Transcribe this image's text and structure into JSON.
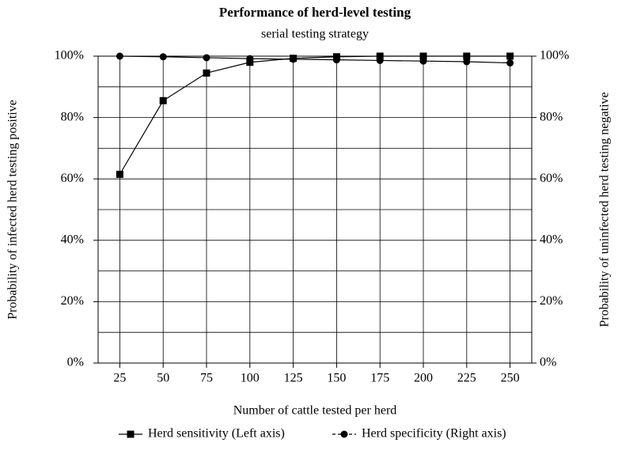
{
  "chart_data": {
    "type": "line",
    "title": "Performance of herd-level testing",
    "subtitle": "serial testing strategy",
    "xlabel": "Number of cattle tested per herd",
    "ylabel": "Probability of infected herd testing positive",
    "y2label": "Probability of uninfected herd testing negative",
    "categories": [
      "25",
      "50",
      "75",
      "100",
      "125",
      "150",
      "175",
      "200",
      "225",
      "250"
    ],
    "series": [
      {
        "name": "Herd sensitivity (Left axis)",
        "color": "#000000",
        "marker": "square",
        "values": [
          61.5,
          85.5,
          94.5,
          98,
          99.3,
          99.8,
          100,
          100,
          100,
          100
        ]
      },
      {
        "name": "Herd specificity (Right axis)",
        "color": "#000000",
        "marker": "circle",
        "axis": "y2",
        "values": [
          100,
          99.8,
          99.5,
          99.2,
          99,
          98.8,
          98.6,
          98.4,
          98.2,
          97.8
        ]
      }
    ],
    "ylim": [
      0,
      100
    ],
    "yticks": [
      {
        "value": 0,
        "label": "0%"
      },
      {
        "value": 20,
        "label": "20%"
      },
      {
        "value": 40,
        "label": "40%"
      },
      {
        "value": 60,
        "label": "60%"
      },
      {
        "value": 80,
        "label": "80%"
      },
      {
        "value": 100,
        "label": "100%"
      }
    ],
    "y2lim": [
      0,
      100
    ],
    "y2ticks": [
      {
        "value": 0,
        "label": "0%"
      },
      {
        "value": 20,
        "label": "20%"
      },
      {
        "value": 40,
        "label": "40%"
      },
      {
        "value": 60,
        "label": "60%"
      },
      {
        "value": 80,
        "label": "80%"
      },
      {
        "value": 100,
        "label": "100%"
      }
    ],
    "ygrid": [
      10,
      30,
      50,
      70,
      90
    ],
    "grid": true,
    "legend": "bottom"
  }
}
